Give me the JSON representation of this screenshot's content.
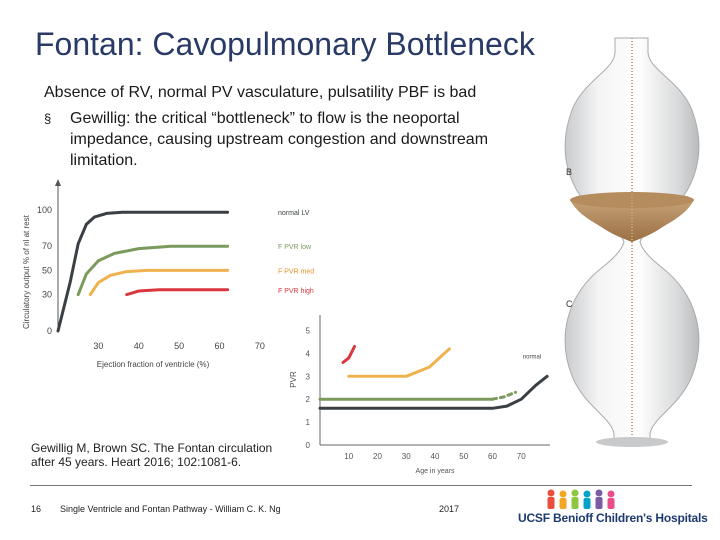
{
  "slide": {
    "title": "Fontan: Cavopulmonary Bottleneck",
    "intro": "Absence of RV, normal PV vasculature, pulsatility PBF is bad",
    "bullet_mark": "§",
    "bullet": "Gewillig: the critical “bottleneck” to flow is the neoportal impedance, causing upstream congestion and downstream limitation.",
    "citation": "Gewillig M, Brown SC. The Fontan circulation after 45 years. Heart 2016; 102:1081-6.",
    "hourglass_labels": [
      "B",
      "C"
    ]
  },
  "footer": {
    "page": "16",
    "title": "Single Ventricle and Fontan Pathway - William C. K. Ng",
    "year": "2017",
    "logo_text": "UCSF Benioff Children's Hospitals"
  },
  "colors": {
    "title": "#2a3a66",
    "normal": "#3a3f44",
    "pvr_low": "#7a9a5e",
    "pvr_med": "#f0b24e",
    "pvr_high": "#d9363e",
    "label_orange": "#e8902a",
    "label_red": "#d9363e"
  },
  "chart_data": [
    {
      "type": "line",
      "xlabel": "Ejection fraction of ventricle (%)",
      "ylabel": "Circulatory output % of nl at rest",
      "x_ticks": [
        30,
        40,
        50,
        60,
        70
      ],
      "y_ticks": [
        0,
        30,
        50,
        70,
        100
      ],
      "xlim": [
        20,
        72
      ],
      "ylim": [
        0,
        118
      ],
      "series": [
        {
          "name": "normal LV",
          "x": [
            20,
            23,
            25,
            27,
            29,
            32,
            36,
            45,
            55,
            62
          ],
          "y": [
            0,
            40,
            72,
            88,
            94,
            97,
            98,
            98,
            98,
            98
          ]
        },
        {
          "name": "F PVR low",
          "x": [
            25,
            27,
            30,
            34,
            40,
            48,
            55,
            62
          ],
          "y": [
            30,
            47,
            58,
            64,
            68,
            70,
            70,
            70
          ]
        },
        {
          "name": "F PVR med",
          "x": [
            28,
            30,
            33,
            37,
            42,
            50,
            57,
            62
          ],
          "y": [
            30,
            40,
            46,
            49,
            50,
            50,
            50,
            50
          ]
        },
        {
          "name": "F PVR high",
          "x": [
            37,
            40,
            45,
            52,
            58,
            62
          ],
          "y": [
            30,
            33,
            34,
            34,
            34,
            34
          ]
        }
      ]
    },
    {
      "type": "line",
      "xlabel": "Age in years",
      "ylabel": "PVR",
      "x_ticks": [
        10,
        20,
        30,
        40,
        50,
        60,
        70
      ],
      "y_ticks": [
        0,
        1,
        2,
        3,
        4,
        5
      ],
      "xlim": [
        0,
        80
      ],
      "ylim": [
        0,
        5.5
      ],
      "series": [
        {
          "name": "normal",
          "x": [
            0,
            10,
            20,
            30,
            40,
            50,
            60,
            65,
            70,
            75,
            79
          ],
          "y": [
            1.6,
            1.6,
            1.6,
            1.6,
            1.6,
            1.6,
            1.6,
            1.7,
            2.0,
            2.6,
            3.0
          ]
        },
        {
          "x": [
            0,
            10,
            20,
            30,
            40,
            50,
            60
          ],
          "y": [
            2.0,
            2.0,
            2.0,
            2.0,
            2.0,
            2.0,
            2.0
          ]
        },
        {
          "x": [
            60,
            64,
            68
          ],
          "y": [
            2.0,
            2.1,
            2.3
          ],
          "dashed": true
        },
        {
          "x": [
            10,
            20,
            30,
            38,
            45
          ],
          "y": [
            3.0,
            3.0,
            3.0,
            3.4,
            4.2
          ]
        },
        {
          "x": [
            8,
            10,
            12
          ],
          "y": [
            3.6,
            3.8,
            4.3
          ]
        }
      ]
    }
  ]
}
